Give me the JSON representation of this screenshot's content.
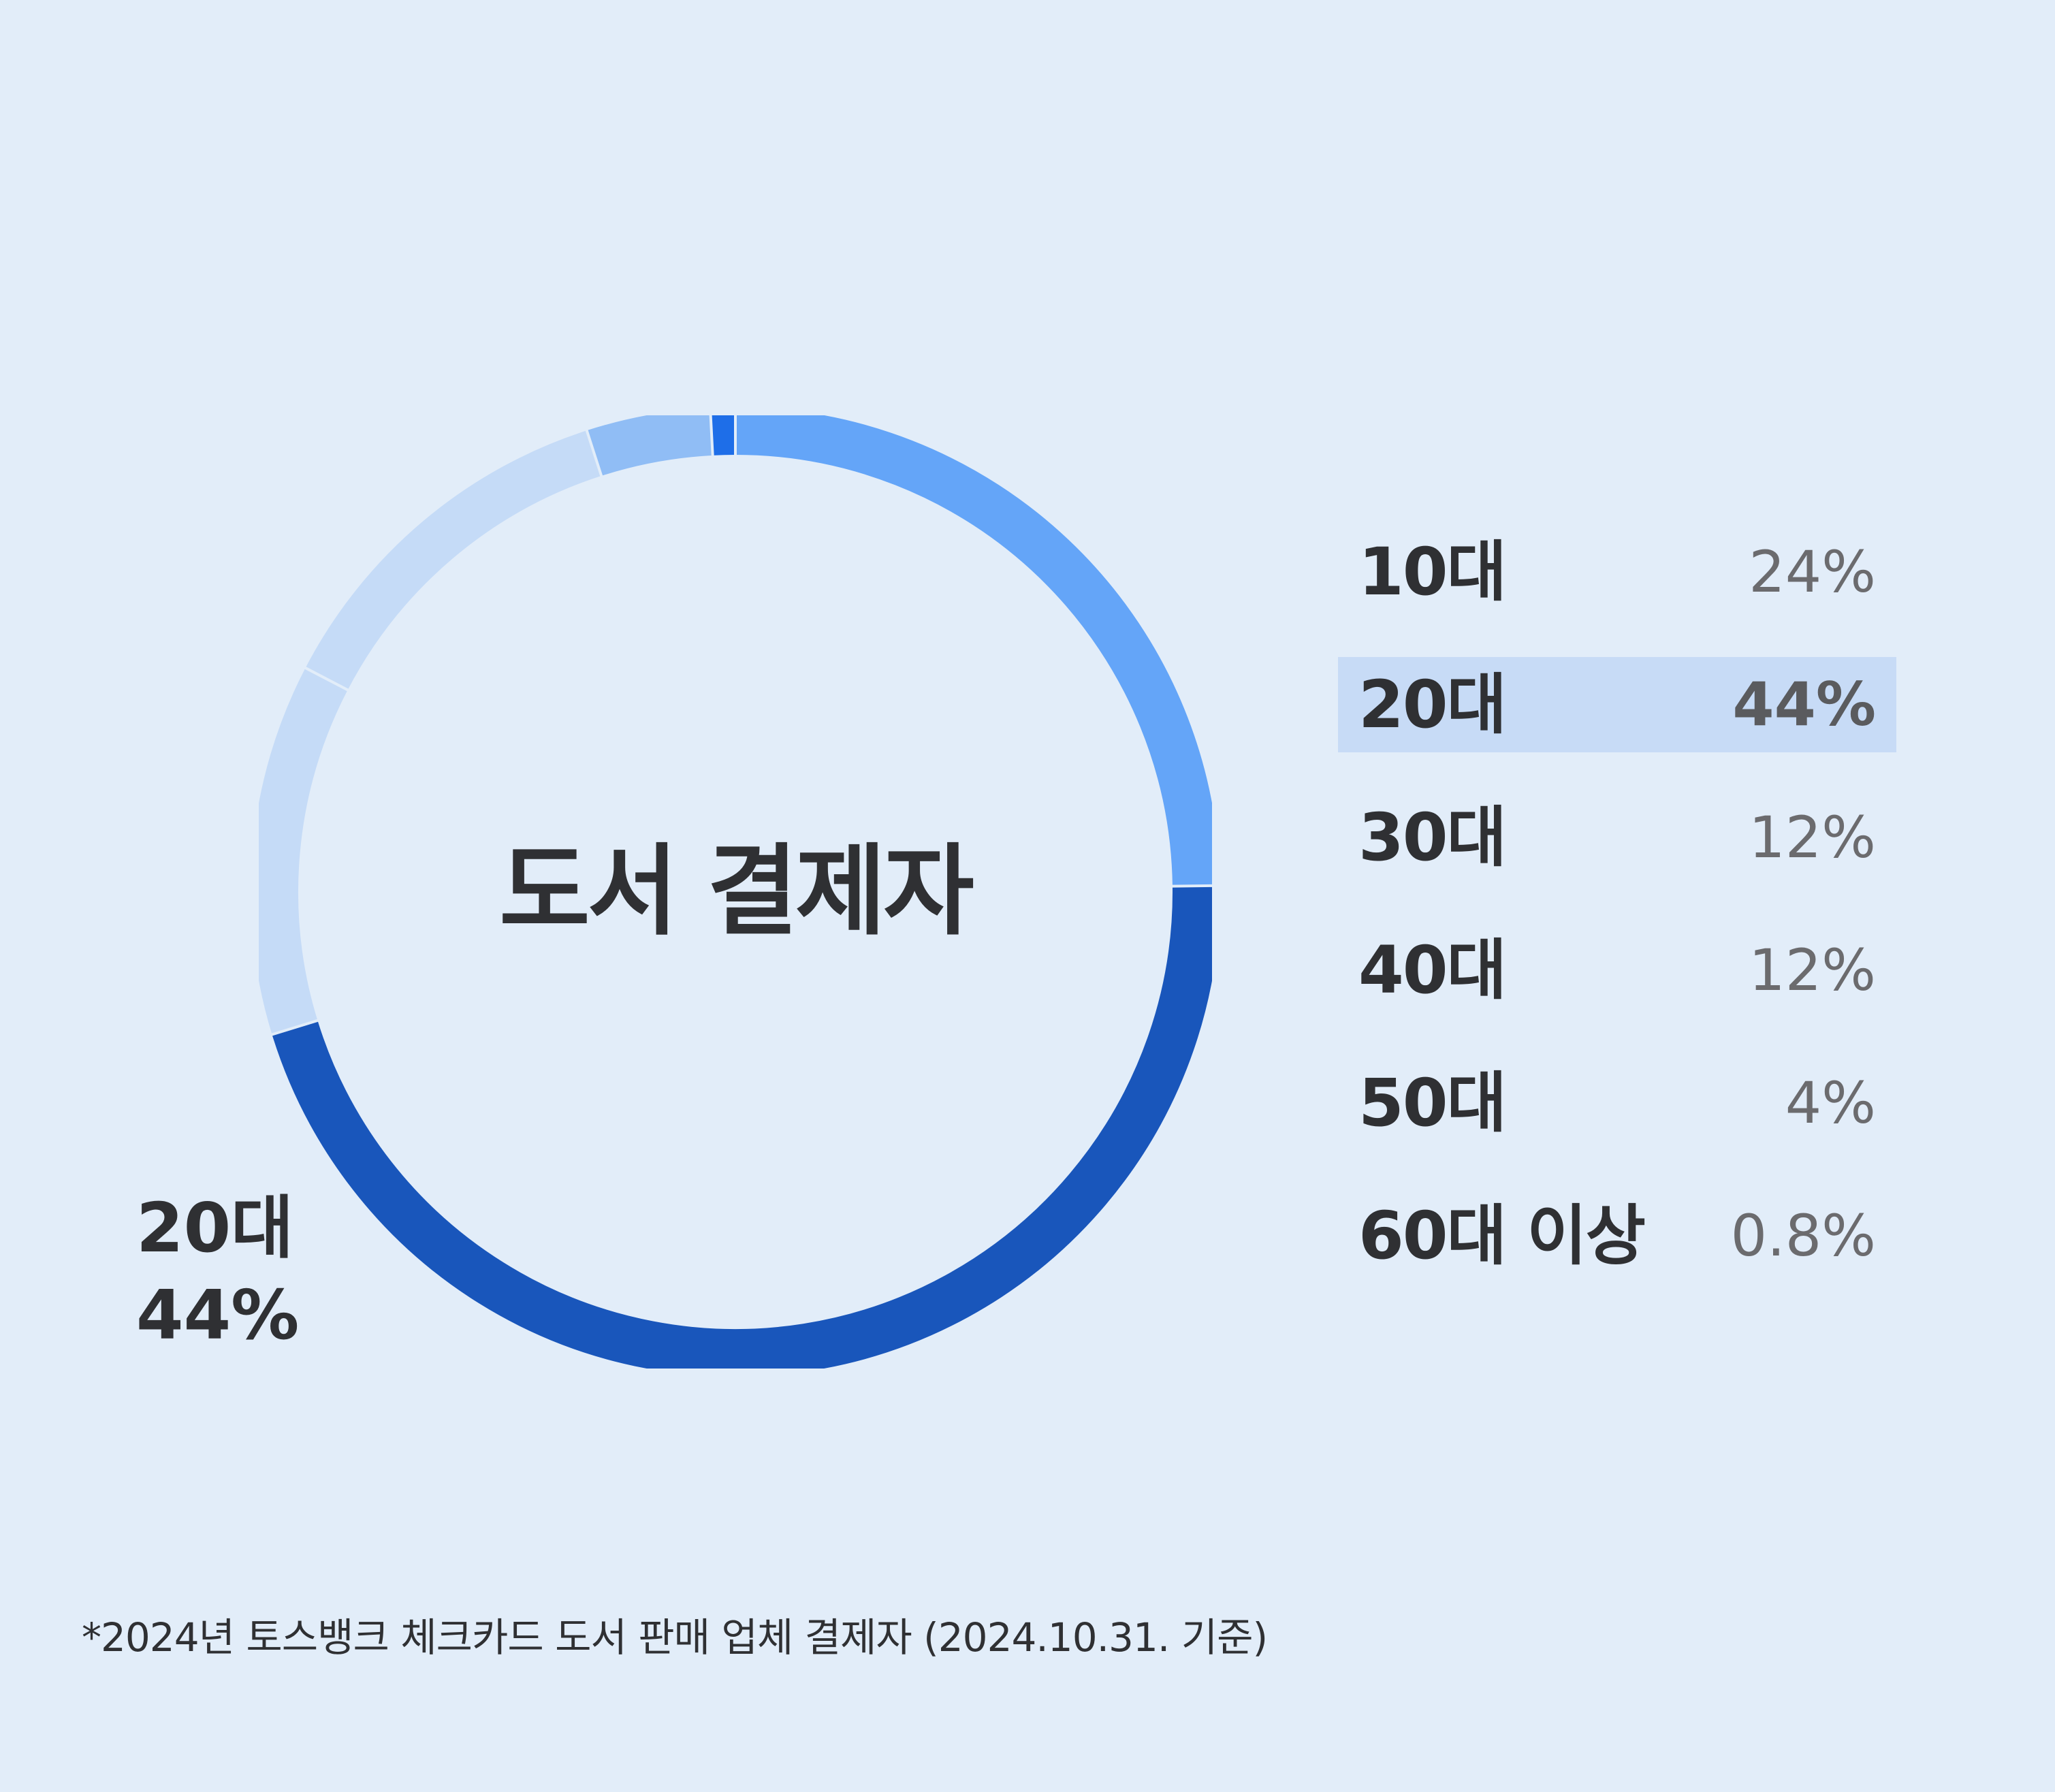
{
  "chart_data": {
    "type": "pie",
    "title": "도서 결제자",
    "categories": [
      "10대",
      "20대",
      "30대",
      "40대",
      "50대",
      "60대 이상"
    ],
    "values": [
      24,
      44,
      12,
      12,
      4,
      0.8
    ],
    "value_labels": [
      "24%",
      "44%",
      "12%",
      "12%",
      "4%",
      "0.8%"
    ],
    "highlight_index": 1,
    "colors": [
      "#64a5f8",
      "#1956bb",
      "#c5dbf7",
      "#c5dbf7",
      "#90bdf5",
      "#1e6ee8"
    ],
    "callout": {
      "label": "20대",
      "value": "44%"
    },
    "legend_placement": "right"
  },
  "legend": {
    "items": [
      {
        "label": "10대",
        "value": "24%"
      },
      {
        "label": "20대",
        "value": "44%"
      },
      {
        "label": "30대",
        "value": "12%"
      },
      {
        "label": "40대",
        "value": "12%"
      },
      {
        "label": "50대",
        "value": "4%"
      },
      {
        "label": "60대 이상",
        "value": "0.8%"
      }
    ]
  },
  "footnote": "*2024년 토스뱅크 체크카드 도서 판매 업체 결제자 (2024.10.31. 기준)",
  "colors": {
    "background": "#e2edf9",
    "highlight": "#c7dbf6",
    "text": "#2f3033",
    "muted_text": "#6b6b6e"
  }
}
